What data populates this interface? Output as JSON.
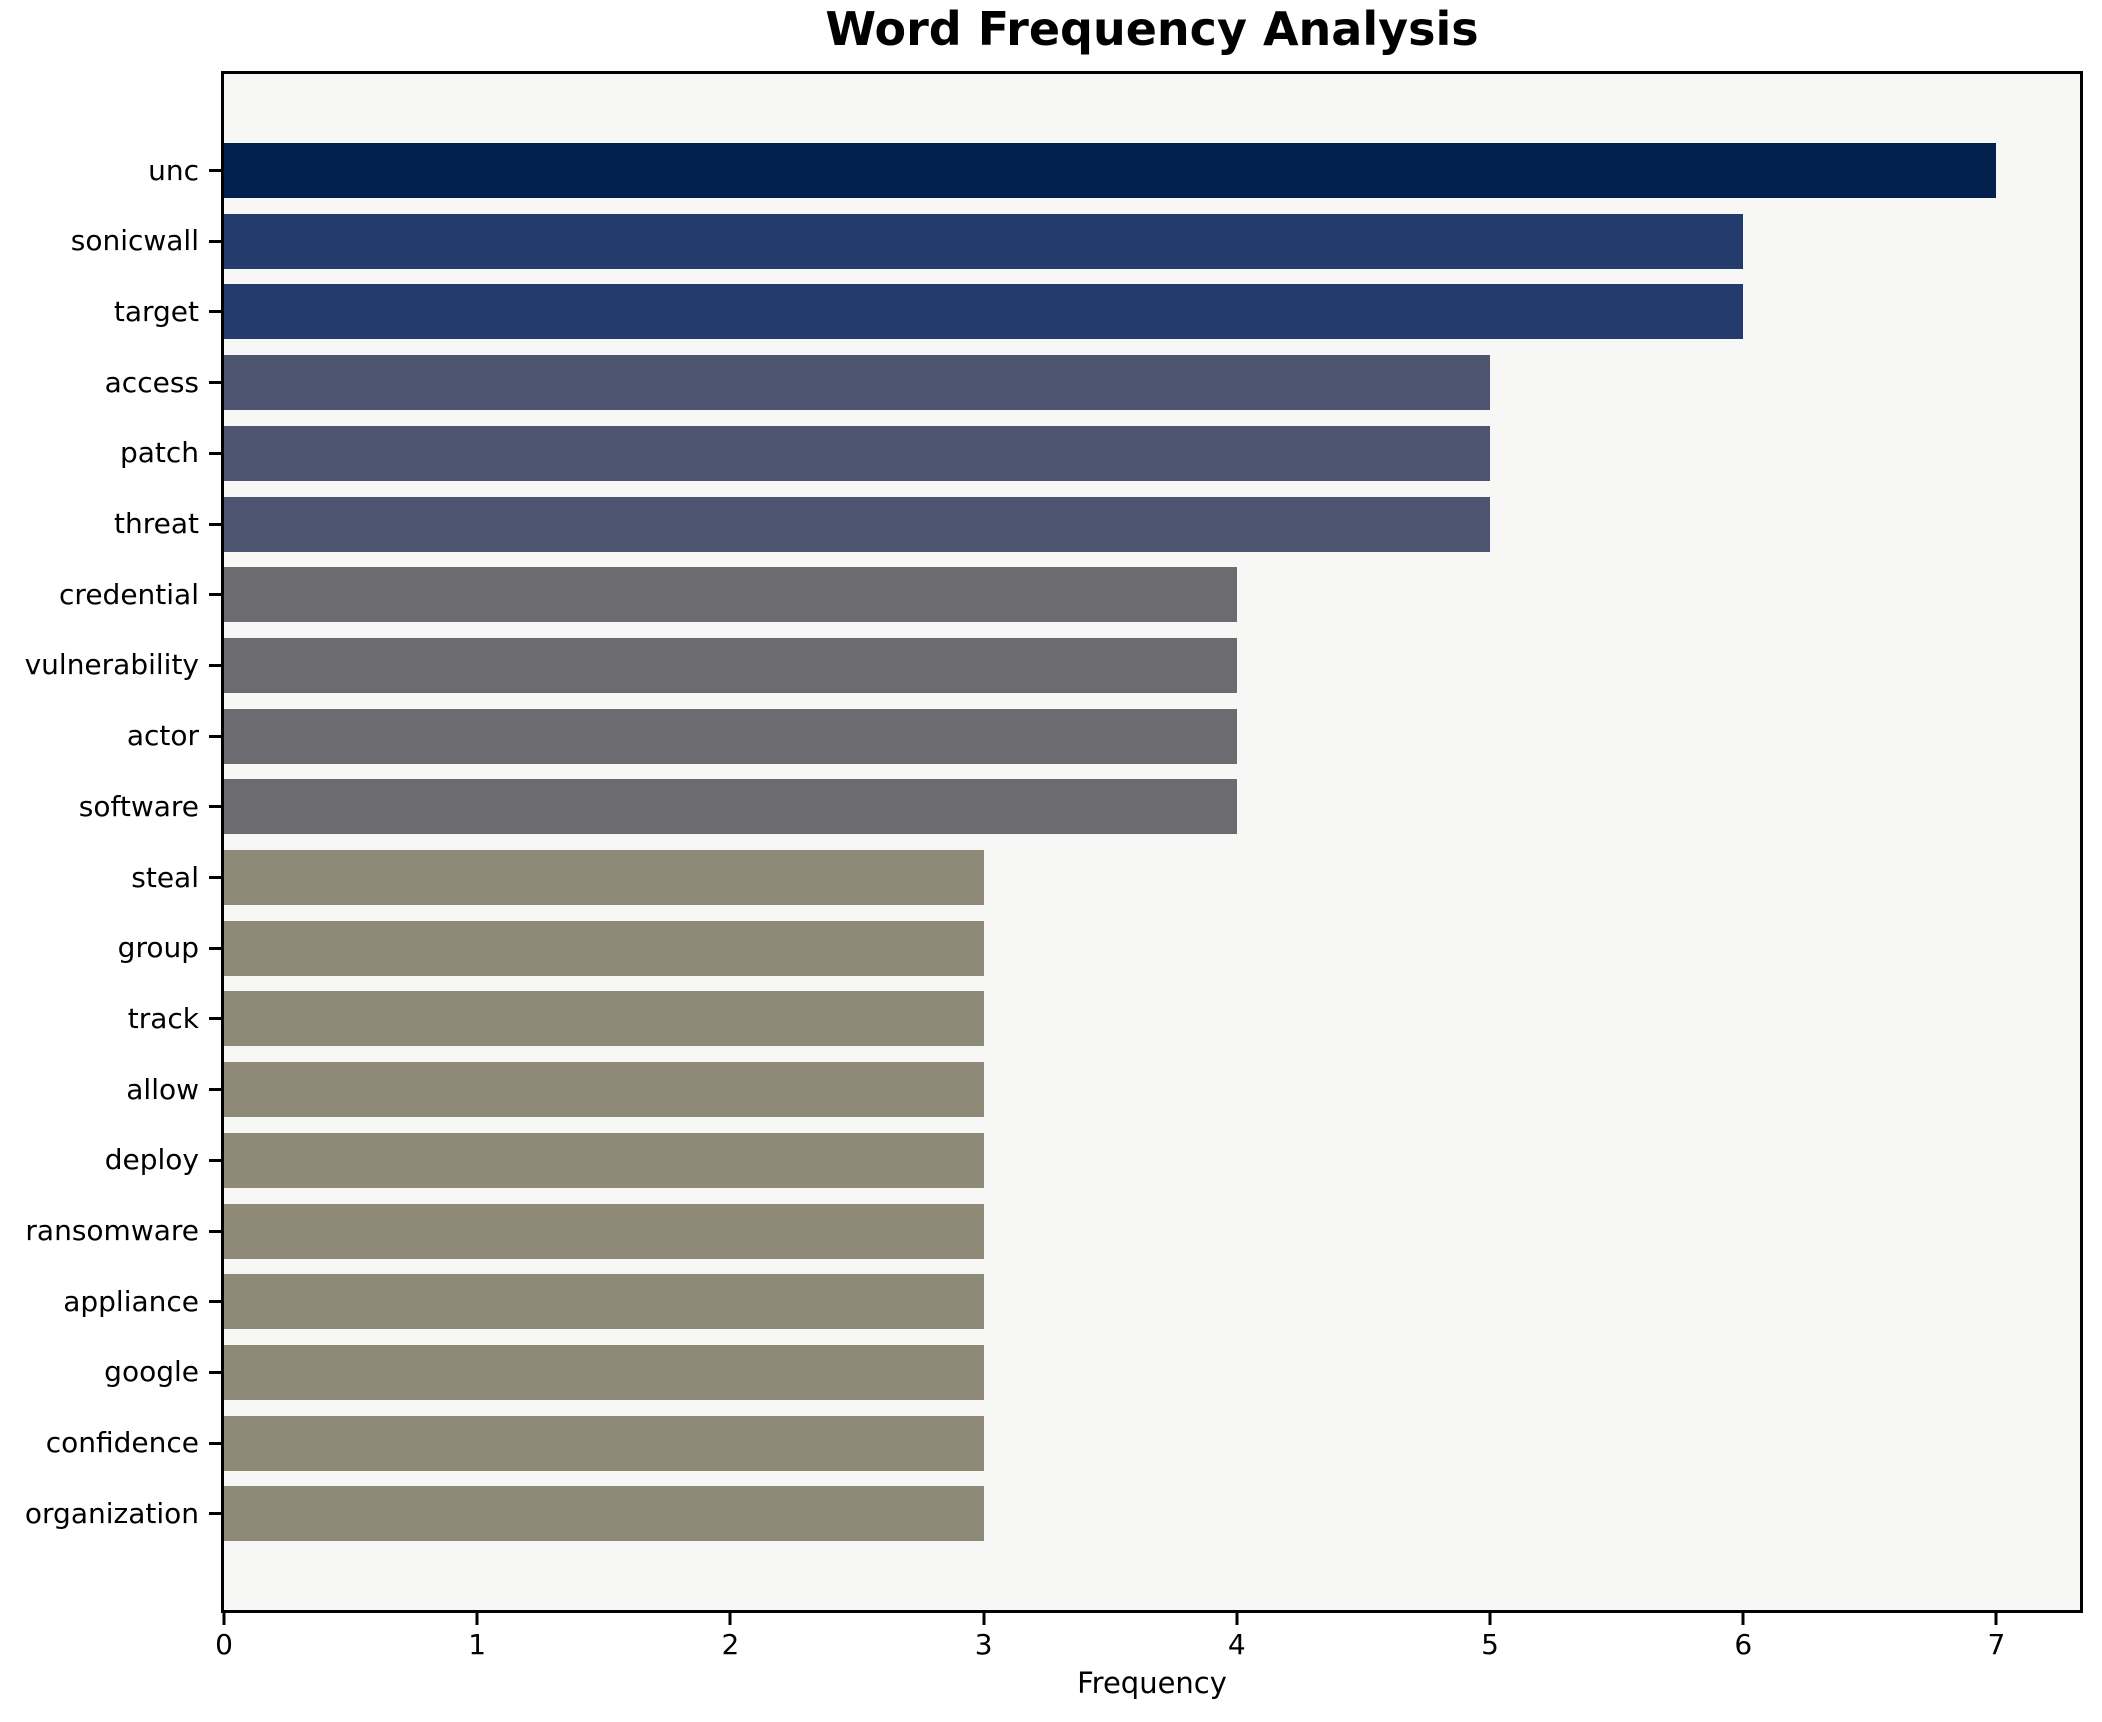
{
  "title": "Word Frequency Analysis",
  "chart_data": {
    "type": "bar",
    "orientation": "horizontal",
    "title": "Word Frequency Analysis",
    "xlabel": "Frequency",
    "ylabel": "",
    "categories": [
      "unc",
      "sonicwall",
      "target",
      "access",
      "patch",
      "threat",
      "credential",
      "vulnerability",
      "actor",
      "software",
      "steal",
      "group",
      "track",
      "allow",
      "deploy",
      "ransomware",
      "appliance",
      "google",
      "confidence",
      "organization"
    ],
    "values": [
      7,
      6,
      6,
      5,
      5,
      5,
      4,
      4,
      4,
      4,
      3,
      3,
      3,
      3,
      3,
      3,
      3,
      3,
      3,
      3
    ],
    "bar_colors": [
      "#02214d",
      "#233c6d",
      "#233c6d",
      "#4d5571",
      "#4d5571",
      "#4d5571",
      "#6c6c70",
      "#6c6c70",
      "#6c6c70",
      "#6c6c70",
      "#8f8a78",
      "#8f8a78",
      "#8f8a78",
      "#8f8a78",
      "#8f8a78",
      "#8f8a78",
      "#8f8a78",
      "#8f8a78",
      "#8f8a78",
      "#8f8a78"
    ],
    "xlim": [
      0,
      7.33
    ],
    "xticks": [
      0,
      1,
      2,
      3,
      4,
      5,
      6,
      7
    ],
    "grid": false,
    "legend": false,
    "plot_background": "#f7f7f6",
    "figure_background": "#ffffff",
    "spine_color": "#000000",
    "value_color_map": {
      "7": "#02214d",
      "6": "#233c6d",
      "5": "#4d5571",
      "4": "#6c6c70",
      "3": "#8f8a78"
    }
  }
}
